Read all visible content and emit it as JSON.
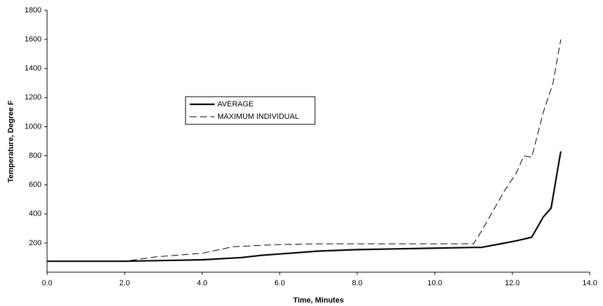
{
  "chart_data": {
    "type": "line",
    "x_label": "Time, Minutes",
    "y_label": "Temperature, Degree F",
    "xlim": [
      0,
      14
    ],
    "xticks": [
      {
        "value": 0,
        "label": "0.0"
      },
      {
        "value": 2,
        "label": "2.0"
      },
      {
        "value": 4,
        "label": "4.0"
      },
      {
        "value": 6,
        "label": "6.0"
      },
      {
        "value": 8,
        "label": "8.0"
      },
      {
        "value": 10,
        "label": "10.0"
      },
      {
        "value": 12,
        "label": "12.0"
      },
      {
        "value": 14,
        "label": "14.0"
      }
    ],
    "ylim": [
      0,
      1800
    ],
    "yticks": [
      200,
      400,
      600,
      800,
      1000,
      1200,
      1400,
      1600,
      1800
    ],
    "series": [
      {
        "name": "AVERAGE",
        "color": "#000000",
        "dash": false,
        "x": [
          0,
          2,
          4,
          5,
          5.5,
          6,
          7,
          8,
          9,
          10,
          11,
          11.2,
          11.8,
          12.1,
          12.5,
          12.8,
          13.0,
          13.25
        ],
        "values": [
          75,
          75,
          85,
          100,
          115,
          125,
          145,
          155,
          160,
          165,
          170,
          170,
          200,
          215,
          240,
          380,
          440,
          830
        ]
      },
      {
        "name": "MAXIMUM INDIVIDUAL",
        "color": "#000000",
        "dash": true,
        "x": [
          0,
          2,
          2.8,
          4,
          4.8,
          6,
          7,
          11,
          11.2,
          11.8,
          12.1,
          12.3,
          12.5,
          12.8,
          13.05,
          13.25
        ],
        "values": [
          75,
          75,
          105,
          130,
          175,
          190,
          195,
          195,
          280,
          560,
          680,
          800,
          790,
          1100,
          1300,
          1600
        ]
      }
    ]
  }
}
